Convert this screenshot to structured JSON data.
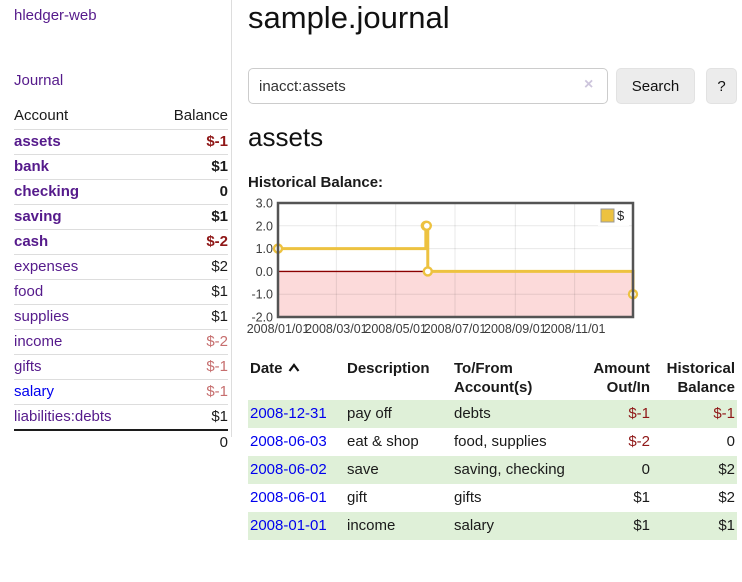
{
  "colors": {
    "visited_link_purple": "#551A8B",
    "unvisited_link_blue": "#0000EE",
    "negative_strong_red": "#8f1717",
    "negative_dim_red": "#c66e6e",
    "row_stripe_green": "#dff0d8",
    "chart_series_yellow": "#EDC240",
    "chart_negative_bg_pink": "#fcdada",
    "chart_zero_line_red": "#8b0000",
    "chart_border_gray": "#545454"
  },
  "sidebar": {
    "brand": "hledger-web",
    "journal_label": "Journal",
    "accounts_table": {
      "headers": [
        "Account",
        "Balance"
      ],
      "rows": [
        {
          "account": "assets",
          "indent": 1,
          "bold": true,
          "balance": "$-1",
          "balance_style": "neg-strong"
        },
        {
          "account": "bank",
          "indent": 2,
          "bold": true,
          "balance": "$1",
          "balance_style": "pos-strong"
        },
        {
          "account": "checking",
          "indent": 3,
          "bold": true,
          "balance": "0",
          "balance_style": "pos-strong"
        },
        {
          "account": "saving",
          "indent": 3,
          "bold": true,
          "balance": "$1",
          "balance_style": "pos-strong"
        },
        {
          "account": "cash",
          "indent": 2,
          "bold": true,
          "balance": "$-2",
          "balance_style": "neg-strong"
        },
        {
          "account": "expenses",
          "indent": 1,
          "bold": false,
          "balance": "$2",
          "balance_style": "pos"
        },
        {
          "account": "food",
          "indent": 2,
          "bold": false,
          "balance": "$1",
          "balance_style": "pos"
        },
        {
          "account": "supplies",
          "indent": 2,
          "bold": false,
          "balance": "$1",
          "balance_style": "pos"
        },
        {
          "account": "income",
          "indent": 1,
          "bold": false,
          "balance": "$-2",
          "balance_style": "neg-dim"
        },
        {
          "account": "gifts",
          "indent": 2,
          "bold": false,
          "balance": "$-1",
          "balance_style": "neg-dim"
        },
        {
          "account": "salary",
          "indent": 2,
          "bold": false,
          "balance": "$-1",
          "balance_style": "neg-dim",
          "link_style": "unvisited"
        },
        {
          "account": "liabilities:debts",
          "indent": 1,
          "bold": false,
          "balance": "$1",
          "balance_style": "pos"
        }
      ],
      "total": "0"
    }
  },
  "main": {
    "title": "sample.journal",
    "search": {
      "query": "inacct:assets",
      "clear_icon": "×",
      "search_label": "Search",
      "help_label": "?"
    },
    "account_heading": "assets",
    "register": {
      "headers": {
        "date": "Date",
        "description": "Description",
        "accounts": "To/From Account(s)",
        "amount": "Amount Out/In",
        "balance": "Historical Balance"
      },
      "sort": {
        "column": "date",
        "direction": "ascending"
      },
      "rows": [
        {
          "date": "2008-12-31",
          "description": "pay off",
          "accounts": "debts",
          "amount": "$-1",
          "amount_negative": true,
          "balance": "$-1",
          "balance_negative": true
        },
        {
          "date": "2008-06-03",
          "description": "eat & shop",
          "accounts": "food, supplies",
          "amount": "$-2",
          "amount_negative": true,
          "balance": "0",
          "balance_negative": false
        },
        {
          "date": "2008-06-02",
          "description": "save",
          "accounts": "saving, checking",
          "amount": "0",
          "amount_negative": false,
          "balance": "$2",
          "balance_negative": false
        },
        {
          "date": "2008-06-01",
          "description": "gift",
          "accounts": "gifts",
          "amount": "$1",
          "amount_negative": false,
          "balance": "$2",
          "balance_negative": false
        },
        {
          "date": "2008-01-01",
          "description": "income",
          "accounts": "salary",
          "amount": "$1",
          "amount_negative": false,
          "balance": "$1",
          "balance_negative": false
        }
      ]
    }
  },
  "chart_data": {
    "type": "line",
    "title": "Historical Balance:",
    "step": true,
    "series": [
      {
        "name": "$",
        "color": "#EDC240",
        "points": [
          [
            "2008-01-01",
            1
          ],
          [
            "2008-06-01",
            2
          ],
          [
            "2008-06-02",
            2
          ],
          [
            "2008-06-03",
            0
          ],
          [
            "2008-12-31",
            -1
          ]
        ]
      }
    ],
    "xrange": [
      "2008-01-01",
      "2008-12-31"
    ],
    "ylim": [
      -2,
      3
    ],
    "yticks": [
      3.0,
      2.0,
      1.0,
      0.0,
      -1.0,
      -2.0
    ],
    "xticks": [
      "2008/01/01",
      "2008/03/01",
      "2008/05/01",
      "2008/07/01",
      "2008/09/01",
      "2008/11/01"
    ],
    "grid": true,
    "legend_position": "top-right",
    "negative_region_color": "#fcdada",
    "zero_line_color": "#8b0000"
  }
}
